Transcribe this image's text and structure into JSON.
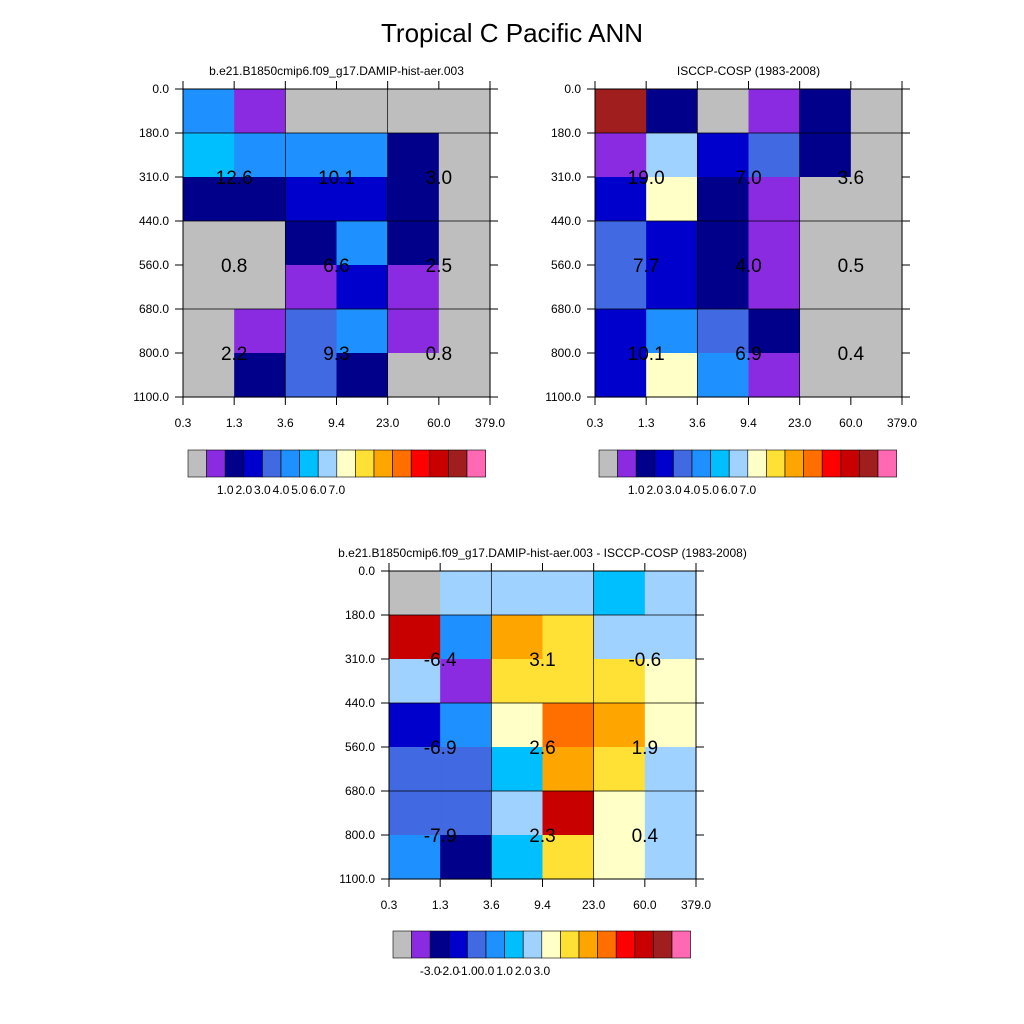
{
  "figure_title": "Tropical C Pacific ANN",
  "chart_data": [
    {
      "type": "heatmap",
      "title": "b.e21.B1850cmip6.f09_g17.DAMIP-hist-aer.003",
      "x_ticks": [
        "0.3",
        "1.3",
        "3.6",
        "9.4",
        "23.0",
        "60.0",
        "379.0"
      ],
      "y_ticks": [
        "0.0",
        "180.0",
        "310.0",
        "440.0",
        "560.0",
        "680.0",
        "800.0",
        "1100.0"
      ],
      "cells": [
        [
          5,
          1,
          0,
          0,
          0,
          0
        ],
        [
          6,
          5,
          5,
          5,
          2,
          0
        ],
        [
          2,
          2,
          3,
          3,
          2,
          0
        ],
        [
          0,
          0,
          2,
          5,
          2,
          0
        ],
        [
          0,
          0,
          1,
          3,
          1,
          0
        ],
        [
          0,
          1,
          4,
          5,
          1,
          0
        ],
        [
          0,
          2,
          4,
          2,
          0,
          0
        ]
      ],
      "block_values": [
        {
          "row_start": 1,
          "row_end": 3,
          "col_start": 0,
          "col_end": 2,
          "text": "12.6"
        },
        {
          "row_start": 1,
          "row_end": 3,
          "col_start": 2,
          "col_end": 4,
          "text": "10.1"
        },
        {
          "row_start": 1,
          "row_end": 3,
          "col_start": 4,
          "col_end": 6,
          "text": "3.0"
        },
        {
          "row_start": 3,
          "row_end": 5,
          "col_start": 0,
          "col_end": 2,
          "text": "0.8"
        },
        {
          "row_start": 3,
          "row_end": 5,
          "col_start": 2,
          "col_end": 4,
          "text": "6.6"
        },
        {
          "row_start": 3,
          "row_end": 5,
          "col_start": 4,
          "col_end": 6,
          "text": "2.5"
        },
        {
          "row_start": 5,
          "row_end": 7,
          "col_start": 0,
          "col_end": 2,
          "text": "2.2"
        },
        {
          "row_start": 5,
          "row_end": 7,
          "col_start": 2,
          "col_end": 4,
          "text": "9.3"
        },
        {
          "row_start": 5,
          "row_end": 7,
          "col_start": 4,
          "col_end": 6,
          "text": "0.8"
        }
      ],
      "colorbar": {
        "colors": [
          "#bebebe",
          "#8a2be2",
          "#00008b",
          "#0000cd",
          "#4169e1",
          "#1e90ff",
          "#00bfff",
          "#a0d2ff",
          "#ffffc8",
          "#ffe135",
          "#ffa500",
          "#ff6f00",
          "#ff0000",
          "#c80000",
          "#a01e1e",
          "#ff69b4"
        ],
        "labels": [
          "1.0",
          "2.0",
          "3.0",
          "4.0",
          "5.0",
          "6.0",
          "7.0"
        ]
      }
    },
    {
      "type": "heatmap",
      "title": "ISCCP-COSP (1983-2008)",
      "x_ticks": [
        "0.3",
        "1.3",
        "3.6",
        "9.4",
        "23.0",
        "60.0",
        "379.0"
      ],
      "y_ticks": [
        "0.0",
        "180.0",
        "310.0",
        "440.0",
        "560.0",
        "680.0",
        "800.0",
        "1100.0"
      ],
      "cells": [
        [
          14,
          2,
          0,
          1,
          2,
          0
        ],
        [
          1,
          7,
          3,
          4,
          2,
          0
        ],
        [
          3,
          8,
          2,
          1,
          0,
          0
        ],
        [
          4,
          3,
          2,
          1,
          0,
          0
        ],
        [
          4,
          3,
          2,
          1,
          0,
          0
        ],
        [
          3,
          5,
          4,
          2,
          0,
          0
        ],
        [
          3,
          8,
          5,
          1,
          0,
          0
        ]
      ],
      "block_values": [
        {
          "row_start": 1,
          "row_end": 3,
          "col_start": 0,
          "col_end": 2,
          "text": "19.0"
        },
        {
          "row_start": 1,
          "row_end": 3,
          "col_start": 2,
          "col_end": 4,
          "text": "7.0"
        },
        {
          "row_start": 1,
          "row_end": 3,
          "col_start": 4,
          "col_end": 6,
          "text": "3.6"
        },
        {
          "row_start": 3,
          "row_end": 5,
          "col_start": 0,
          "col_end": 2,
          "text": "7.7"
        },
        {
          "row_start": 3,
          "row_end": 5,
          "col_start": 2,
          "col_end": 4,
          "text": "4.0"
        },
        {
          "row_start": 3,
          "row_end": 5,
          "col_start": 4,
          "col_end": 6,
          "text": "0.5"
        },
        {
          "row_start": 5,
          "row_end": 7,
          "col_start": 0,
          "col_end": 2,
          "text": "10.1"
        },
        {
          "row_start": 5,
          "row_end": 7,
          "col_start": 2,
          "col_end": 4,
          "text": "6.9"
        },
        {
          "row_start": 5,
          "row_end": 7,
          "col_start": 4,
          "col_end": 6,
          "text": "0.4"
        }
      ],
      "colorbar": {
        "colors": [
          "#bebebe",
          "#8a2be2",
          "#00008b",
          "#0000cd",
          "#4169e1",
          "#1e90ff",
          "#00bfff",
          "#a0d2ff",
          "#ffffc8",
          "#ffe135",
          "#ffa500",
          "#ff6f00",
          "#ff0000",
          "#c80000",
          "#a01e1e",
          "#ff69b4"
        ],
        "labels": [
          "1.0",
          "2.0",
          "3.0",
          "4.0",
          "5.0",
          "6.0",
          "7.0"
        ]
      }
    },
    {
      "type": "heatmap",
      "title": "b.e21.B1850cmip6.f09_g17.DAMIP-hist-aer.003 - ISCCP-COSP (1983-2008)",
      "x_ticks": [
        "0.3",
        "1.3",
        "3.6",
        "9.4",
        "23.0",
        "60.0",
        "379.0"
      ],
      "y_ticks": [
        "0.0",
        "180.0",
        "310.0",
        "440.0",
        "560.0",
        "680.0",
        "800.0",
        "1100.0"
      ],
      "cells": [
        [
          0,
          7,
          7,
          7,
          6,
          7
        ],
        [
          13,
          5,
          10,
          9,
          7,
          7
        ],
        [
          7,
          1,
          9,
          9,
          9,
          8
        ],
        [
          3,
          5,
          8,
          11,
          10,
          8
        ],
        [
          4,
          4,
          6,
          10,
          9,
          7
        ],
        [
          4,
          4,
          7,
          13,
          8,
          7
        ],
        [
          5,
          2,
          6,
          9,
          8,
          7
        ]
      ],
      "block_values": [
        {
          "row_start": 1,
          "row_end": 3,
          "col_start": 0,
          "col_end": 2,
          "text": "-6.4"
        },
        {
          "row_start": 1,
          "row_end": 3,
          "col_start": 2,
          "col_end": 4,
          "text": "3.1"
        },
        {
          "row_start": 1,
          "row_end": 3,
          "col_start": 4,
          "col_end": 6,
          "text": "-0.6"
        },
        {
          "row_start": 3,
          "row_end": 5,
          "col_start": 0,
          "col_end": 2,
          "text": "-6.9"
        },
        {
          "row_start": 3,
          "row_end": 5,
          "col_start": 2,
          "col_end": 4,
          "text": "2.6"
        },
        {
          "row_start": 3,
          "row_end": 5,
          "col_start": 4,
          "col_end": 6,
          "text": "1.9"
        },
        {
          "row_start": 5,
          "row_end": 7,
          "col_start": 0,
          "col_end": 2,
          "text": "-7.9"
        },
        {
          "row_start": 5,
          "row_end": 7,
          "col_start": 2,
          "col_end": 4,
          "text": "2.3"
        },
        {
          "row_start": 5,
          "row_end": 7,
          "col_start": 4,
          "col_end": 6,
          "text": "0.4"
        }
      ],
      "colorbar": {
        "colors": [
          "#bebebe",
          "#8a2be2",
          "#00008b",
          "#0000cd",
          "#4169e1",
          "#1e90ff",
          "#00bfff",
          "#a0d2ff",
          "#ffffc8",
          "#ffe135",
          "#ffa500",
          "#ff6f00",
          "#ff0000",
          "#c80000",
          "#a01e1e",
          "#ff69b4"
        ],
        "labels": [
          "-3.0",
          "-2.0",
          "-1.0",
          "0.0",
          "1.0",
          "2.0",
          "3.0"
        ]
      }
    }
  ]
}
